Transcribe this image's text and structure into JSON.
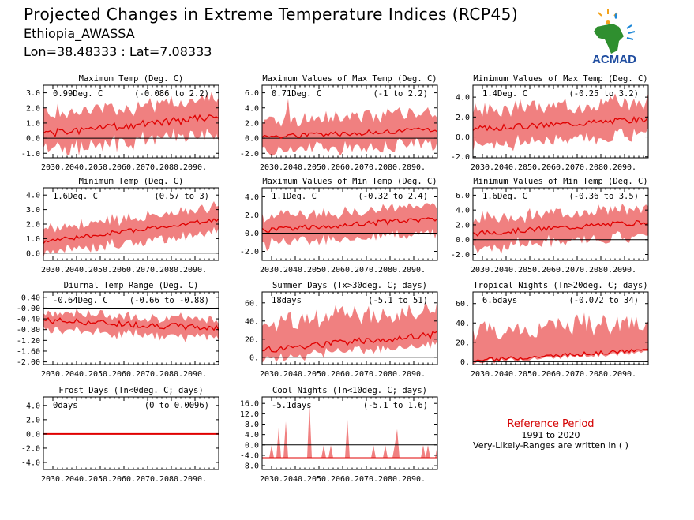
{
  "header": {
    "title": "Projected Changes in Extreme Temperature Indices (RCP45)",
    "station": "Ethiopia_AWASSA",
    "coords": "Lon=38.48333 : Lat=7.08333"
  },
  "logo": {
    "text": "ACMAD",
    "icon": "africa-map-icon"
  },
  "reference": {
    "title": "Reference Period",
    "years": "1991 to 2020",
    "note": "Very-Likely-Ranges are written in ( )"
  },
  "colors": {
    "band": "#f08080",
    "line": "#e00000",
    "zero": "#000000"
  },
  "x_ticks": [
    "2030.",
    "2040.",
    "2050.",
    "2060.",
    "2070.",
    "2080.",
    "2090."
  ],
  "chart_data": [
    {
      "type": "area",
      "title": "Maximum Temp (Deg. C)",
      "value_label": "0.99Deg. C",
      "range_label": "(-0.086 to 2.2)",
      "yticks": [
        "-1.0",
        "0.0",
        "1.0",
        "2.0",
        "3.0"
      ],
      "ylim": [
        -1.3,
        3.5
      ],
      "xlim": [
        2026,
        2100
      ],
      "start": 0.3,
      "end": 1.4,
      "noise": 0.25,
      "lowoff": -1.1,
      "highoff": 1.2,
      "spike": 0,
      "seed": 1
    },
    {
      "type": "area",
      "title": "Maximum Values of Max Temp (Deg. C)",
      "value_label": "0.71Deg. C",
      "range_label": "(-1 to 2.2)",
      "yticks": [
        "-2.0",
        "0.0",
        "2.0",
        "4.0",
        "6.0"
      ],
      "ylim": [
        -2.6,
        7
      ],
      "xlim": [
        2026,
        2100
      ],
      "start": 0.2,
      "end": 1.1,
      "noise": 0.35,
      "lowoff": -1.9,
      "highoff": 2.2,
      "spike": 5.2,
      "seed": 2
    },
    {
      "type": "area",
      "title": "Minimum Values of Max Temp (Deg. C)",
      "value_label": "1.4Deg. C",
      "range_label": "(-0.25 to 3.2)",
      "yticks": [
        "-2.0",
        "0.0",
        "2.0",
        "4.0"
      ],
      "ylim": [
        -2.1,
        5.2
      ],
      "xlim": [
        2026,
        2100
      ],
      "start": 0.8,
      "end": 1.8,
      "noise": 0.3,
      "lowoff": -1.6,
      "highoff": 1.8,
      "spike": 0,
      "seed": 3
    },
    {
      "type": "area",
      "title": "Minimum Temp (Deg. C)",
      "value_label": "1.6Deg. C",
      "range_label": "(0.57 to 3)",
      "yticks": [
        "0.0",
        "1.0",
        "2.0",
        "3.0",
        "4.0"
      ],
      "ylim": [
        -0.5,
        4.5
      ],
      "xlim": [
        2026,
        2100
      ],
      "start": 0.8,
      "end": 2.3,
      "noise": 0.15,
      "lowoff": -0.8,
      "highoff": 0.9,
      "spike": 0,
      "seed": 4
    },
    {
      "type": "area",
      "title": "Maximum Values of Min Temp (Deg. C)",
      "value_label": "1.1Deg. C",
      "range_label": "(-0.32 to 2.4)",
      "yticks": [
        "-2.0",
        "0.0",
        "2.0",
        "4.0"
      ],
      "ylim": [
        -3,
        5
      ],
      "xlim": [
        2026,
        2100
      ],
      "start": 0.3,
      "end": 1.6,
      "noise": 0.3,
      "lowoff": -1.5,
      "highoff": 1.4,
      "spike": 0,
      "seed": 5
    },
    {
      "type": "area",
      "title": "Minimum Values of Min Temp (Deg. C)",
      "value_label": "1.6Deg. C",
      "range_label": "(-0.36 to 3.5)",
      "yticks": [
        "-2.0",
        "0.0",
        "2.0",
        "4.0",
        "6.0"
      ],
      "ylim": [
        -2.8,
        7
      ],
      "xlim": [
        2026,
        2100
      ],
      "start": 0.8,
      "end": 2.4,
      "noise": 0.35,
      "lowoff": -1.9,
      "highoff": 2.0,
      "spike": 0,
      "seed": 6
    },
    {
      "type": "area",
      "title": "Diurnal Temp Range (Deg. C)",
      "value_label": "-0.64Deg. C",
      "range_label": "(-0.66 to -0.88)",
      "yticks": [
        "-2.00",
        "-1.60",
        "-1.20",
        "-0.80",
        "-0.40",
        "-0.00",
        "0.40"
      ],
      "ylim": [
        -2.1,
        0.6
      ],
      "xlim": [
        2026,
        2100
      ],
      "start": -0.45,
      "end": -0.75,
      "noise": 0.12,
      "lowoff": -0.35,
      "highoff": 0.3,
      "spike": 0,
      "seed": 7
    },
    {
      "type": "area",
      "title": "Summer Days (Tx>30deg. C; days)",
      "value_label": "18days",
      "range_label": "(-5.1 to 51)",
      "yticks": [
        "0.",
        "20.",
        "40.",
        "60."
      ],
      "ylim": [
        -8,
        72
      ],
      "xlim": [
        2026,
        2100
      ],
      "start": 8,
      "end": 25,
      "noise": 4,
      "lowoff": -10,
      "highoff": 28,
      "spike": 0,
      "seed": 8
    },
    {
      "type": "area",
      "title": "Tropical Nights (Tn>20deg. C; days)",
      "value_label": "6.6days",
      "range_label": "(-0.072 to 34)",
      "yticks": [
        "0.",
        "20.",
        "40.",
        "60."
      ],
      "ylim": [
        -3,
        72
      ],
      "xlim": [
        2026,
        2100
      ],
      "start": 1,
      "end": 12,
      "noise": 2,
      "lowoff": -2,
      "highoff": 30,
      "spike": 0,
      "seed": 9
    },
    {
      "type": "area",
      "title": "Frost Days (Tn<0deg. C; days)",
      "value_label": "0days",
      "range_label": "(0 to 0.0096)",
      "yticks": [
        "-4.0",
        "-2.0",
        "0.0",
        "2.0",
        "4.0"
      ],
      "ylim": [
        -5,
        5.2
      ],
      "xlim": [
        2026,
        2100
      ],
      "start": 0,
      "end": 0,
      "noise": 0,
      "lowoff": 0,
      "highoff": 0.05,
      "spike": 0,
      "seed": 10
    },
    {
      "type": "area",
      "title": "Cool Nights (Tn<10deg. C; days)",
      "value_label": "-5.1days",
      "range_label": "(-5.1 to 1.6)",
      "yticks": [
        "-8.0",
        "-4.0",
        "0.0",
        "4.0",
        "8.0",
        "12.0",
        "16.0"
      ],
      "ylim": [
        -9.5,
        18.5
      ],
      "xlim": [
        2026,
        2100
      ],
      "start": -5.1,
      "end": -5.1,
      "noise": 0,
      "lowoff": -0.1,
      "highoff": 5.1,
      "spike": 0,
      "seed": 11,
      "coolspikes": true
    }
  ]
}
